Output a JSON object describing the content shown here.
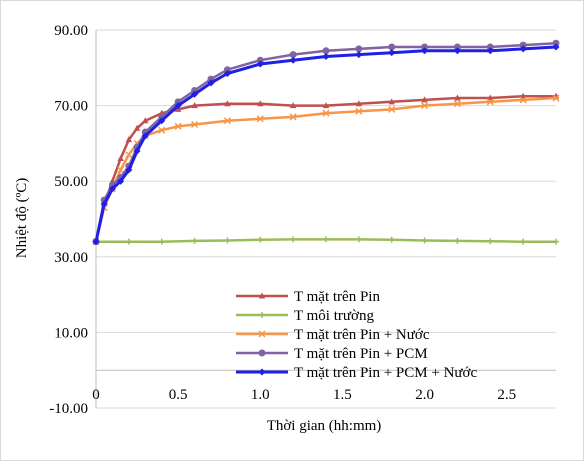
{
  "chart_data": {
    "type": "line",
    "title": "",
    "xlabel": "Thời gian (hh:mm)",
    "ylabel": "Nhiệt độ (ºC)",
    "xlim": [
      0,
      2.8
    ],
    "ylim": [
      -10,
      90
    ],
    "x_ticks": [
      0,
      0.5,
      1.0,
      1.5,
      2.0,
      2.5
    ],
    "x_tick_labels": [
      "0",
      "0.5",
      "1.0",
      "1.5",
      "2.0",
      "2.5"
    ],
    "y_ticks": [
      -10,
      10,
      30,
      50,
      70,
      90
    ],
    "y_tick_labels": [
      "-10.00",
      "10.00",
      "30.00",
      "50.00",
      "70.00",
      "90.00"
    ],
    "grid": "horizontal",
    "legend_position": "bottom-center",
    "series": [
      {
        "name": "T mặt trên Pin",
        "color": "#c0504d",
        "marker": "triangle",
        "x": [
          0,
          0.05,
          0.1,
          0.15,
          0.2,
          0.25,
          0.3,
          0.4,
          0.5,
          0.6,
          0.8,
          1.0,
          1.2,
          1.4,
          1.6,
          1.8,
          2.0,
          2.2,
          2.4,
          2.6,
          2.8
        ],
        "y": [
          34,
          44,
          50,
          56,
          61,
          64,
          66,
          68,
          69,
          70,
          70.5,
          70.5,
          70,
          70,
          70.5,
          71,
          71.5,
          72,
          72,
          72.5,
          72.5
        ]
      },
      {
        "name": "T môi trường",
        "color": "#9bbb59",
        "marker": "plus",
        "x": [
          0,
          0.2,
          0.4,
          0.6,
          0.8,
          1.0,
          1.2,
          1.4,
          1.6,
          1.8,
          2.0,
          2.2,
          2.4,
          2.6,
          2.8
        ],
        "y": [
          34,
          34,
          34,
          34.2,
          34.3,
          34.5,
          34.6,
          34.6,
          34.6,
          34.5,
          34.3,
          34.2,
          34.1,
          34,
          34
        ]
      },
      {
        "name": "T mặt trên Pin + Nước",
        "color": "#f79646",
        "marker": "x",
        "x": [
          0,
          0.05,
          0.1,
          0.15,
          0.2,
          0.25,
          0.3,
          0.4,
          0.5,
          0.6,
          0.8,
          1.0,
          1.2,
          1.4,
          1.6,
          1.8,
          2.0,
          2.2,
          2.4,
          2.6,
          2.8
        ],
        "y": [
          34,
          43,
          48,
          53,
          57,
          60,
          62,
          63.5,
          64.5,
          65,
          66,
          66.5,
          67,
          68,
          68.5,
          69,
          70,
          70.5,
          71,
          71.5,
          72
        ]
      },
      {
        "name": "T mặt trên Pin + PCM",
        "color": "#8064a2",
        "marker": "circle",
        "x": [
          0,
          0.05,
          0.1,
          0.15,
          0.2,
          0.25,
          0.3,
          0.4,
          0.5,
          0.6,
          0.7,
          0.8,
          1.0,
          1.2,
          1.4,
          1.6,
          1.8,
          2.0,
          2.2,
          2.4,
          2.6,
          2.8
        ],
        "y": [
          34,
          45,
          49,
          51,
          54,
          59,
          63,
          67,
          71,
          74,
          77,
          79.5,
          82,
          83.5,
          84.5,
          85,
          85.5,
          85.5,
          85.5,
          85.5,
          86,
          86.5
        ]
      },
      {
        "name": "T mặt trên Pin + PCM + Nước",
        "color": "#1f1fe6",
        "marker": "diamond",
        "x": [
          0,
          0.05,
          0.1,
          0.15,
          0.2,
          0.25,
          0.3,
          0.4,
          0.5,
          0.6,
          0.7,
          0.8,
          1.0,
          1.2,
          1.4,
          1.6,
          1.8,
          2.0,
          2.2,
          2.4,
          2.6,
          2.8
        ],
        "y": [
          34,
          44,
          48,
          50,
          53,
          58,
          62,
          66,
          70,
          73,
          76,
          78.5,
          81,
          82,
          83,
          83.5,
          84,
          84.5,
          84.5,
          84.5,
          85,
          85.5
        ]
      }
    ]
  }
}
